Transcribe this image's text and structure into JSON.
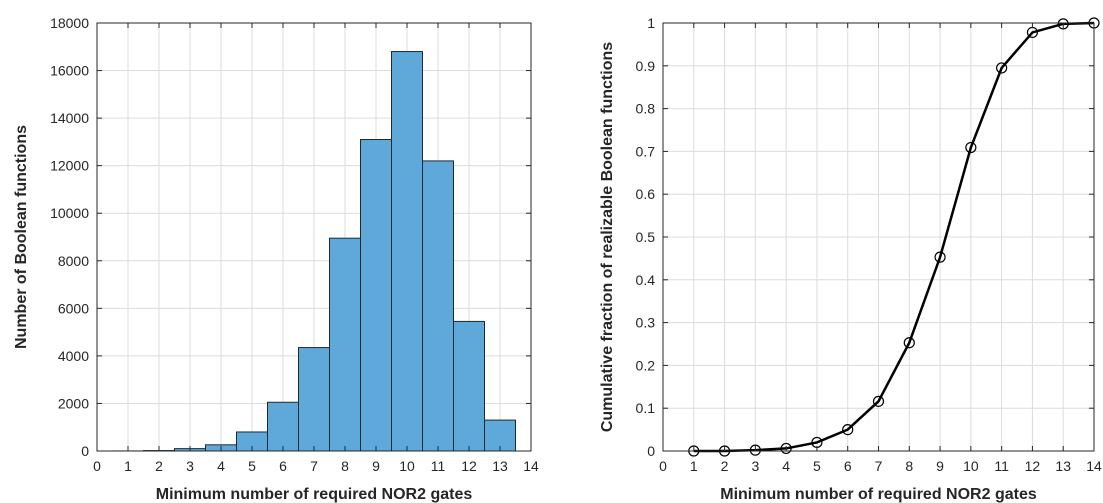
{
  "chart_data": [
    {
      "type": "bar",
      "title": "",
      "xlabel": "Minimum number of required NOR2 gates",
      "ylabel": "Number of Boolean functions",
      "xlim": [
        0,
        14
      ],
      "ylim": [
        0,
        18000
      ],
      "x_ticks": [
        0,
        1,
        2,
        3,
        4,
        5,
        6,
        7,
        8,
        9,
        10,
        11,
        12,
        13,
        14
      ],
      "y_ticks": [
        0,
        2000,
        4000,
        6000,
        8000,
        10000,
        12000,
        14000,
        16000,
        18000
      ],
      "grid": true,
      "bin_width": 1,
      "categories": [
        1,
        2,
        3,
        4,
        5,
        6,
        7,
        8,
        9,
        10,
        11,
        12,
        13
      ],
      "values": [
        2,
        18,
        100,
        260,
        800,
        2050,
        4350,
        8950,
        13100,
        16800,
        12200,
        5450,
        1300
      ],
      "bar_color": "#5ea9da"
    },
    {
      "type": "line",
      "title": "",
      "xlabel": "Minimum number of required NOR2 gates",
      "ylabel": "Cumulative fraction of realizable Boolean functions",
      "xlim": [
        0,
        14
      ],
      "ylim": [
        0,
        1
      ],
      "x_ticks": [
        0,
        1,
        2,
        3,
        4,
        5,
        6,
        7,
        8,
        9,
        10,
        11,
        12,
        13,
        14
      ],
      "y_ticks": [
        0,
        0.1,
        0.2,
        0.3,
        0.4,
        0.5,
        0.6,
        0.7,
        0.8,
        0.9,
        1
      ],
      "grid": true,
      "marker": "open-circle",
      "line_color": "#000000",
      "x": [
        1,
        2,
        3,
        4,
        5,
        6,
        7,
        8,
        9,
        10,
        11,
        12,
        13,
        14
      ],
      "y": [
        0.0,
        0.0,
        0.002,
        0.006,
        0.02,
        0.05,
        0.116,
        0.253,
        0.453,
        0.709,
        0.895,
        0.978,
        0.998,
        1.0
      ]
    }
  ]
}
